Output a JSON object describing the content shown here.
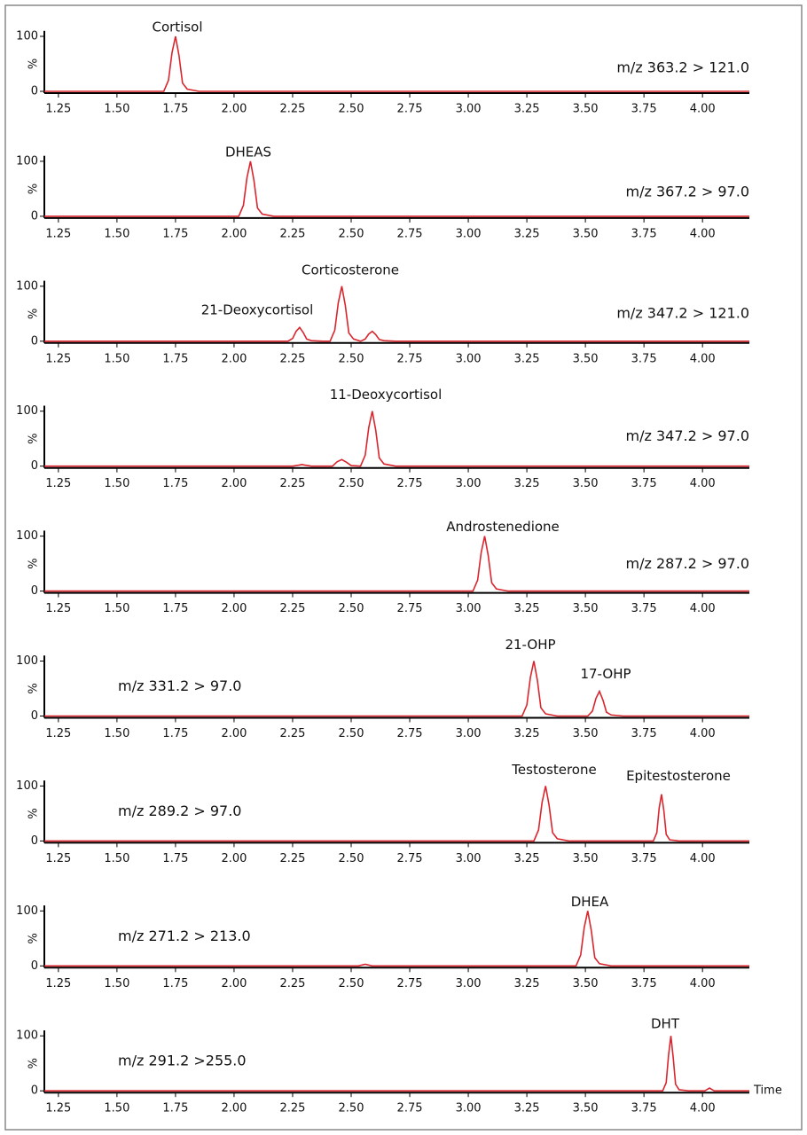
{
  "chart_data": [
    {
      "type": "line",
      "annotations": [
        "Cortisol"
      ],
      "trace_label": "m/z 363.2 > 121.0",
      "color": "#d9262e",
      "xlim": [
        1.19,
        4.2
      ],
      "ylim": [
        0,
        110
      ],
      "yticks": [
        0,
        100
      ],
      "ylabel": "%",
      "xticks": [
        1.25,
        {
          "value": 1.5,
          "label": "1.50"
        },
        1.75,
        {
          "value": 2,
          "label": "2.00"
        },
        2.25,
        {
          "value": 2.5,
          "label": "2.50"
        },
        2.75,
        {
          "value": 3,
          "label": "3.00"
        },
        3.25,
        {
          "value": 3.5,
          "label": "3.50"
        },
        3.75,
        {
          "value": 4,
          "label": "4.00"
        }
      ],
      "x": [
        1.19,
        1.7,
        1.72,
        1.735,
        1.75,
        1.765,
        1.78,
        1.8,
        1.85,
        4.2
      ],
      "values": [
        0,
        0,
        20,
        70,
        100,
        65,
        15,
        4,
        0,
        0
      ]
    },
    {
      "type": "line",
      "annotations": [
        "DHEAS"
      ],
      "trace_label": "m/z 367.2 > 97.0",
      "color": "#d9262e",
      "xlim": [
        1.19,
        4.2
      ],
      "ylim": [
        0,
        110
      ],
      "yticks": [
        0,
        100
      ],
      "ylabel": "%",
      "xticks": [
        1.25,
        {
          "value": 1.5,
          "label": "1.50"
        },
        1.75,
        {
          "value": 2,
          "label": "2.00"
        },
        2.25,
        {
          "value": 2.5,
          "label": "2.50"
        },
        2.75,
        {
          "value": 3,
          "label": "3.00"
        },
        3.25,
        {
          "value": 3.5,
          "label": "3.50"
        },
        3.75,
        {
          "value": 4,
          "label": "4.00"
        }
      ],
      "x": [
        1.19,
        2.02,
        2.04,
        2.055,
        2.07,
        2.085,
        2.1,
        2.12,
        2.17,
        4.2
      ],
      "values": [
        0,
        0,
        20,
        70,
        100,
        65,
        15,
        4,
        0,
        0
      ]
    },
    {
      "type": "line",
      "annotations": [
        "Corticosterone",
        "21-Deoxycortisol"
      ],
      "trace_label": "m/z 347.2 > 121.0",
      "color": "#d9262e",
      "xlim": [
        1.19,
        4.2
      ],
      "ylim": [
        0,
        110
      ],
      "yticks": [
        0,
        100
      ],
      "ylabel": "%",
      "xticks": [
        1.25,
        {
          "value": 1.5,
          "label": "1.50"
        },
        1.75,
        {
          "value": 2,
          "label": "2.00"
        },
        2.25,
        {
          "value": 2.5,
          "label": "2.50"
        },
        2.75,
        {
          "value": 3,
          "label": "3.00"
        },
        3.25,
        {
          "value": 3.5,
          "label": "3.50"
        },
        3.75,
        {
          "value": 4,
          "label": "4.00"
        }
      ],
      "x": [
        1.19,
        2.23,
        2.25,
        2.265,
        2.28,
        2.295,
        2.31,
        2.33,
        2.38,
        2.41,
        2.43,
        2.445,
        2.46,
        2.475,
        2.49,
        2.51,
        2.54,
        2.56,
        2.575,
        2.59,
        2.605,
        2.62,
        2.64,
        2.69,
        4.2
      ],
      "values": [
        0,
        0,
        5,
        18,
        25,
        16,
        4,
        1,
        0,
        0,
        20,
        70,
        100,
        65,
        15,
        4,
        0,
        4,
        13,
        18,
        12,
        3,
        1,
        0,
        0
      ]
    },
    {
      "type": "line",
      "annotations": [
        "11-Deoxycortisol"
      ],
      "trace_label": "m/z 347.2 > 97.0",
      "color": "#d9262e",
      "xlim": [
        1.19,
        4.2
      ],
      "ylim": [
        0,
        110
      ],
      "yticks": [
        0,
        100
      ],
      "ylabel": "%",
      "xticks": [
        1.25,
        {
          "value": 1.5,
          "label": "1.50"
        },
        1.75,
        {
          "value": 2,
          "label": "2.00"
        },
        2.25,
        {
          "value": 2.5,
          "label": "2.50"
        },
        2.75,
        {
          "value": 3,
          "label": "3.00"
        },
        3.25,
        {
          "value": 3.5,
          "label": "3.50"
        },
        3.75,
        {
          "value": 4,
          "label": "4.00"
        }
      ],
      "x": [
        1.19,
        2.25,
        2.28,
        2.29,
        2.3,
        2.33,
        2.42,
        2.44,
        2.46,
        2.48,
        2.5,
        2.54,
        2.56,
        2.575,
        2.59,
        2.605,
        2.62,
        2.64,
        2.69,
        4.2
      ],
      "values": [
        0,
        0,
        2,
        3,
        2,
        0,
        0,
        8,
        12,
        7,
        1,
        0,
        20,
        70,
        100,
        65,
        15,
        4,
        0,
        0
      ]
    },
    {
      "type": "line",
      "annotations": [
        "Androstenedione"
      ],
      "trace_label": "m/z 287.2 > 97.0",
      "color": "#d9262e",
      "xlim": [
        1.19,
        4.2
      ],
      "ylim": [
        0,
        110
      ],
      "yticks": [
        0,
        100
      ],
      "ylabel": "%",
      "xticks": [
        1.25,
        {
          "value": 1.5,
          "label": "1.50"
        },
        1.75,
        {
          "value": 2,
          "label": "2.00"
        },
        2.25,
        {
          "value": 2.5,
          "label": "2.50"
        },
        2.75,
        {
          "value": 3,
          "label": "3.00"
        },
        3.25,
        {
          "value": 3.5,
          "label": "3.50"
        },
        3.75,
        {
          "value": 4,
          "label": "4.00"
        }
      ],
      "x": [
        1.19,
        3.02,
        3.04,
        3.055,
        3.07,
        3.085,
        3.1,
        3.12,
        3.17,
        4.2
      ],
      "values": [
        0,
        0,
        20,
        70,
        100,
        65,
        15,
        4,
        0,
        0
      ]
    },
    {
      "type": "line",
      "annotations": [
        "21-OHP",
        "17-OHP"
      ],
      "trace_label": "m/z 331.2 > 97.0",
      "color": "#d9262e",
      "xlim": [
        1.19,
        4.2
      ],
      "ylim": [
        0,
        110
      ],
      "yticks": [
        0,
        100
      ],
      "ylabel": "%",
      "xticks": [
        1.25,
        {
          "value": 1.5,
          "label": "1.50"
        },
        1.75,
        {
          "value": 2,
          "label": "2.00"
        },
        2.25,
        {
          "value": 2.5,
          "label": "2.50"
        },
        2.75,
        {
          "value": 3,
          "label": "3.00"
        },
        3.25,
        {
          "value": 3.5,
          "label": "3.50"
        },
        3.75,
        {
          "value": 4,
          "label": "4.00"
        }
      ],
      "x": [
        1.19,
        3.23,
        3.25,
        3.265,
        3.28,
        3.295,
        3.31,
        3.33,
        3.38,
        3.51,
        3.53,
        3.545,
        3.56,
        3.575,
        3.59,
        3.61,
        3.66,
        4.2
      ],
      "values": [
        0,
        0,
        20,
        70,
        100,
        65,
        15,
        4,
        0,
        0,
        9,
        32,
        45,
        29,
        7,
        2,
        0,
        0
      ]
    },
    {
      "type": "line",
      "annotations": [
        "Testosterone",
        "Epitestosterone"
      ],
      "trace_label": "m/z 289.2 > 97.0",
      "color": "#d9262e",
      "xlim": [
        1.19,
        4.2
      ],
      "ylim": [
        0,
        110
      ],
      "yticks": [
        0,
        100
      ],
      "ylabel": "%",
      "xticks": [
        1.25,
        {
          "value": 1.5,
          "label": "1.50"
        },
        1.75,
        {
          "value": 2,
          "label": "2.00"
        },
        2.25,
        {
          "value": 2.5,
          "label": "2.50"
        },
        2.75,
        {
          "value": 3,
          "label": "3.00"
        },
        3.25,
        {
          "value": 3.5,
          "label": "3.50"
        },
        3.75,
        {
          "value": 4,
          "label": "4.00"
        }
      ],
      "x": [
        1.19,
        3.28,
        3.3,
        3.315,
        3.33,
        3.345,
        3.36,
        3.38,
        3.43,
        3.79,
        3.805,
        3.815,
        3.825,
        3.835,
        3.845,
        3.86,
        3.9,
        4.2
      ],
      "values": [
        0,
        0,
        20,
        70,
        100,
        65,
        15,
        4,
        0,
        0,
        15,
        60,
        85,
        55,
        12,
        2,
        0,
        0
      ]
    },
    {
      "type": "line",
      "annotations": [
        "DHEA"
      ],
      "trace_label": "m/z 271.2 > 213.0",
      "color": "#d9262e",
      "xlim": [
        1.19,
        4.2
      ],
      "ylim": [
        0,
        110
      ],
      "yticks": [
        0,
        100
      ],
      "ylabel": "%",
      "xticks": [
        1.25,
        {
          "value": 1.5,
          "label": "1.50"
        },
        1.75,
        {
          "value": 2,
          "label": "2.00"
        },
        2.25,
        {
          "value": 2.5,
          "label": "2.50"
        },
        2.75,
        {
          "value": 3,
          "label": "3.00"
        },
        3.25,
        {
          "value": 3.5,
          "label": "3.50"
        },
        3.75,
        {
          "value": 4,
          "label": "4.00"
        }
      ],
      "x": [
        1.19,
        2.53,
        2.56,
        2.59,
        3.46,
        3.48,
        3.495,
        3.51,
        3.525,
        3.54,
        3.56,
        3.61,
        4.2
      ],
      "values": [
        0,
        0,
        3,
        0,
        0,
        20,
        70,
        100,
        65,
        15,
        4,
        0,
        0
      ]
    },
    {
      "type": "line",
      "annotations": [
        "DHT"
      ],
      "trace_label": "m/z 291.2 >255.0",
      "xlabel": "Time",
      "color": "#d9262e",
      "xlim": [
        1.19,
        4.2
      ],
      "ylim": [
        0,
        110
      ],
      "yticks": [
        0,
        100
      ],
      "ylabel": "%",
      "xticks": [
        1.25,
        {
          "value": 1.5,
          "label": "1.50"
        },
        1.75,
        {
          "value": 2,
          "label": "2.00"
        },
        2.25,
        {
          "value": 2.5,
          "label": "2.50"
        },
        2.75,
        {
          "value": 3,
          "label": "3.00"
        },
        3.25,
        {
          "value": 3.5,
          "label": "3.50"
        },
        3.75,
        {
          "value": 4,
          "label": "4.00"
        }
      ],
      "x": [
        1.19,
        3.83,
        3.845,
        3.855,
        3.865,
        3.875,
        3.885,
        3.9,
        3.94,
        4.01,
        4.03,
        4.05,
        4.2
      ],
      "values": [
        0,
        0,
        15,
        65,
        100,
        60,
        12,
        2,
        0,
        0,
        5,
        0,
        0
      ]
    }
  ]
}
